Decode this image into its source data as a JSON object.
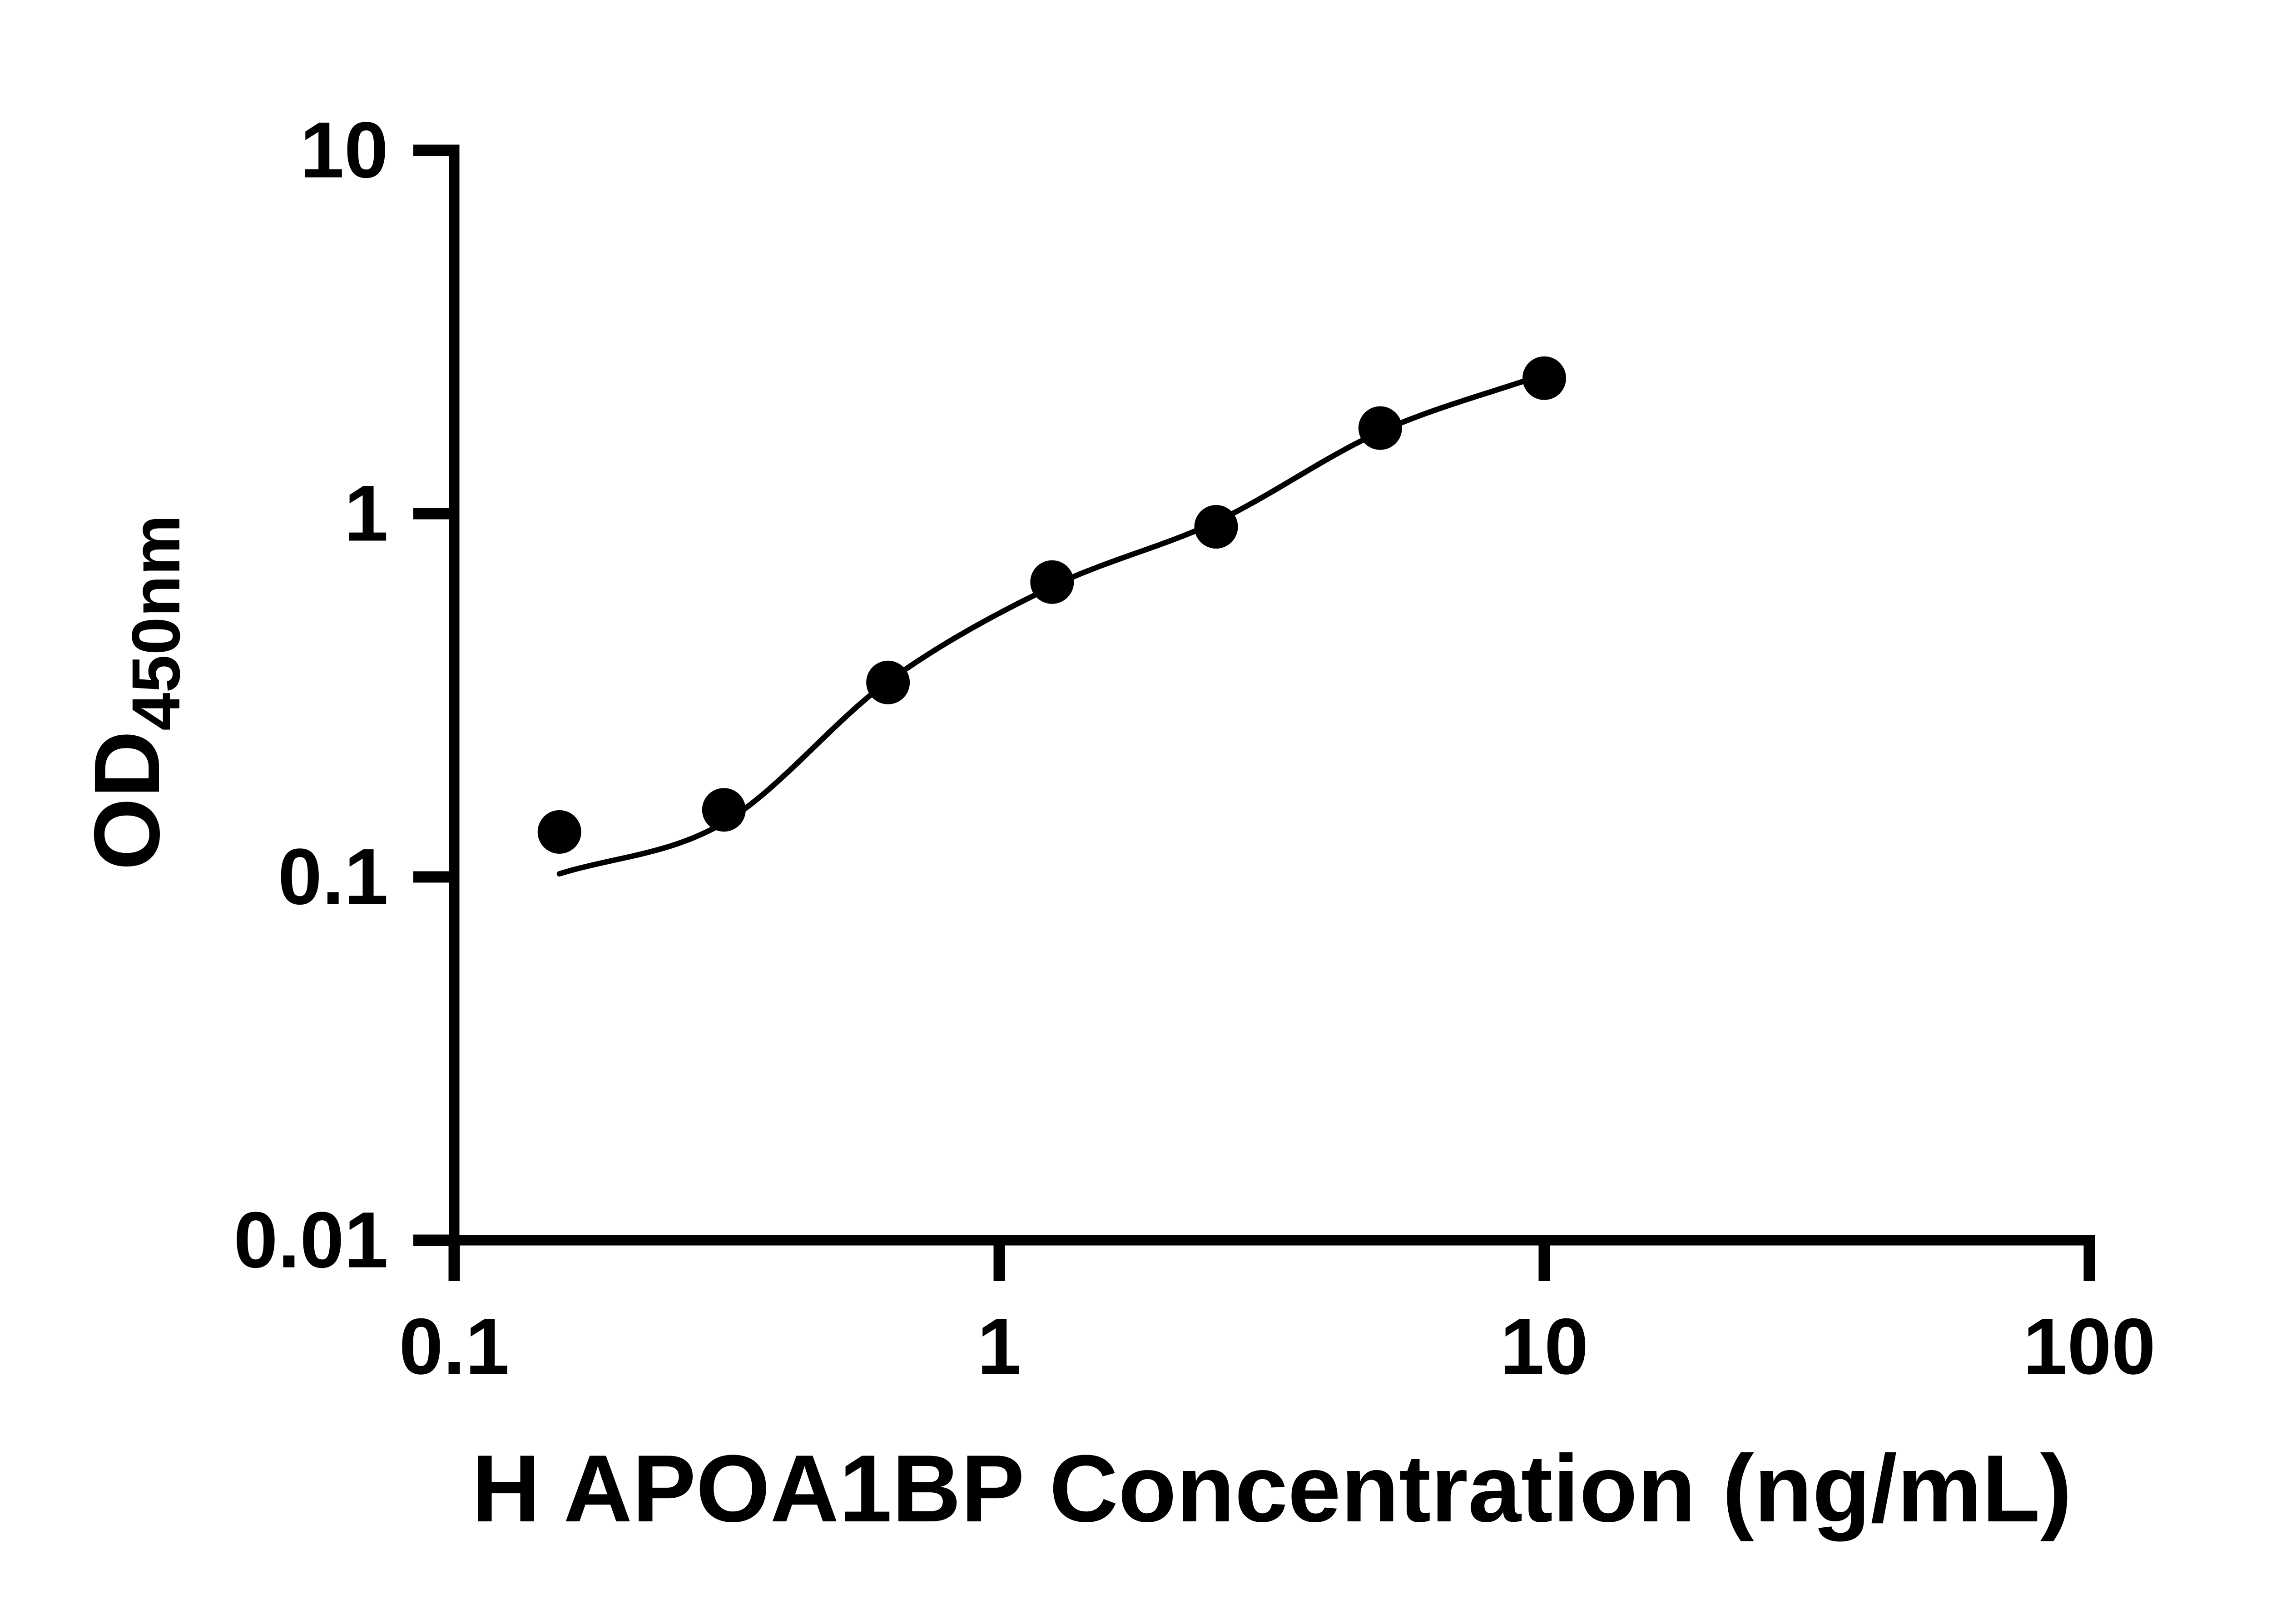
{
  "chart_data": {
    "type": "scatter",
    "title": "",
    "xlabel": "H APOA1BP Concentration (ng/mL)",
    "ylabel": {
      "main": "OD",
      "sub": "450nm"
    },
    "x_scale": "log",
    "y_scale": "log",
    "xlim": [
      0.1,
      100
    ],
    "ylim": [
      0.01,
      10
    ],
    "grid": false,
    "legend": "none",
    "background_color": "#ffffff",
    "marker_color": "#000000",
    "line_color": "#000000",
    "axis_color": "#000000",
    "x_ticks": [
      {
        "value": 0.1,
        "label": "0.1"
      },
      {
        "value": 1,
        "label": "1"
      },
      {
        "value": 10,
        "label": "10"
      },
      {
        "value": 100,
        "label": "100"
      }
    ],
    "y_ticks": [
      {
        "value": 10,
        "label": "10"
      },
      {
        "value": 1,
        "label": "1"
      },
      {
        "value": 0.1,
        "label": "0.1"
      },
      {
        "value": 0.01,
        "label": "0.01"
      }
    ],
    "series": [
      {
        "name": "standard-curve-points",
        "x": [
          0.156,
          0.3125,
          0.625,
          1.25,
          2.5,
          5,
          10
        ],
        "y": [
          0.133,
          0.153,
          0.343,
          0.648,
          0.92,
          1.72,
          2.36
        ]
      }
    ],
    "fit_curve": {
      "name": "4PL-fit",
      "x": [
        0.156,
        0.3125,
        0.625,
        1.25,
        2.5,
        5,
        10
      ],
      "y": [
        0.102,
        0.141,
        0.345,
        0.63,
        0.95,
        1.68,
        2.42
      ]
    }
  }
}
